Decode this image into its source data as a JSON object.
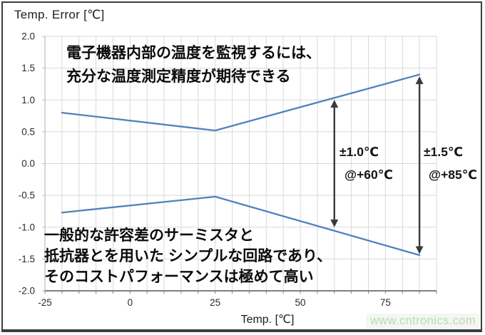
{
  "title": "Temp. Error [℃]",
  "annotations": {
    "top_note_line1": "電子機器内部の温度を監視するには、",
    "top_note_line2": "充分な温度測定精度が期待できる",
    "bottom_note_line1": "一般的な許容差のサーミスタと",
    "bottom_note_line2": "抵抗器とを用いた シンプルな回路であり、",
    "bottom_note_line3": "そのコストパフォーマンスは極めて高い",
    "tol_60_value": "±1.0℃",
    "tol_60_at": "@+60℃",
    "tol_85_value": "±1.5℃",
    "tol_85_at": "@+85℃"
  },
  "watermark": {
    "text": "www.cntronics.com",
    "color": "#b3dfa9"
  },
  "chart_data": {
    "type": "line",
    "title": "Temp. Error [℃]",
    "xlabel": "Temp. [℃]",
    "ylabel": "Temp. Error [℃]",
    "xlim": [
      -25,
      90
    ],
    "ylim": [
      -2.0,
      2.0
    ],
    "x_tick_labels": [
      "-25",
      "0",
      "25",
      "50",
      "75"
    ],
    "x_tick_values": [
      -25,
      0,
      25,
      50,
      75
    ],
    "x_grid_step": 5,
    "y_tick_labels": [
      "2.0",
      "1.5",
      "1.0",
      "0.5",
      "0.0",
      "-0.5",
      "-1.0",
      "-1.5",
      "-2.0"
    ],
    "y_tick_values": [
      2.0,
      1.5,
      1.0,
      0.5,
      0.0,
      -0.5,
      -1.0,
      -1.5,
      -2.0
    ],
    "y_grid_step": 0.5,
    "grid": true,
    "legend": "none",
    "colors": {
      "series": "#4f81bd",
      "grid": "#d9d9d9",
      "x_axis": "#7f7f7f",
      "y_axis": "#bfbfbf",
      "tick_text": "#2b2b2b",
      "arrow": "#3a3a3a"
    },
    "series": [
      {
        "name": "upper-tolerance-limit",
        "points": [
          [
            -20,
            0.8
          ],
          [
            25,
            0.52
          ],
          [
            85,
            1.4
          ]
        ]
      },
      {
        "name": "lower-tolerance-limit",
        "points": [
          [
            -20,
            -0.77
          ],
          [
            25,
            -0.52
          ],
          [
            85,
            -1.44
          ]
        ]
      }
    ],
    "arrows": [
      {
        "name": "tolerance-arrow-60",
        "x": 60,
        "y_top": 0.97,
        "y_bottom": -0.97,
        "label": "±1.0℃ @+60℃"
      },
      {
        "name": "tolerance-arrow-85",
        "x": 85,
        "y_top": 1.34,
        "y_bottom": -1.39,
        "label": "±1.5℃ @+85℃"
      }
    ]
  }
}
